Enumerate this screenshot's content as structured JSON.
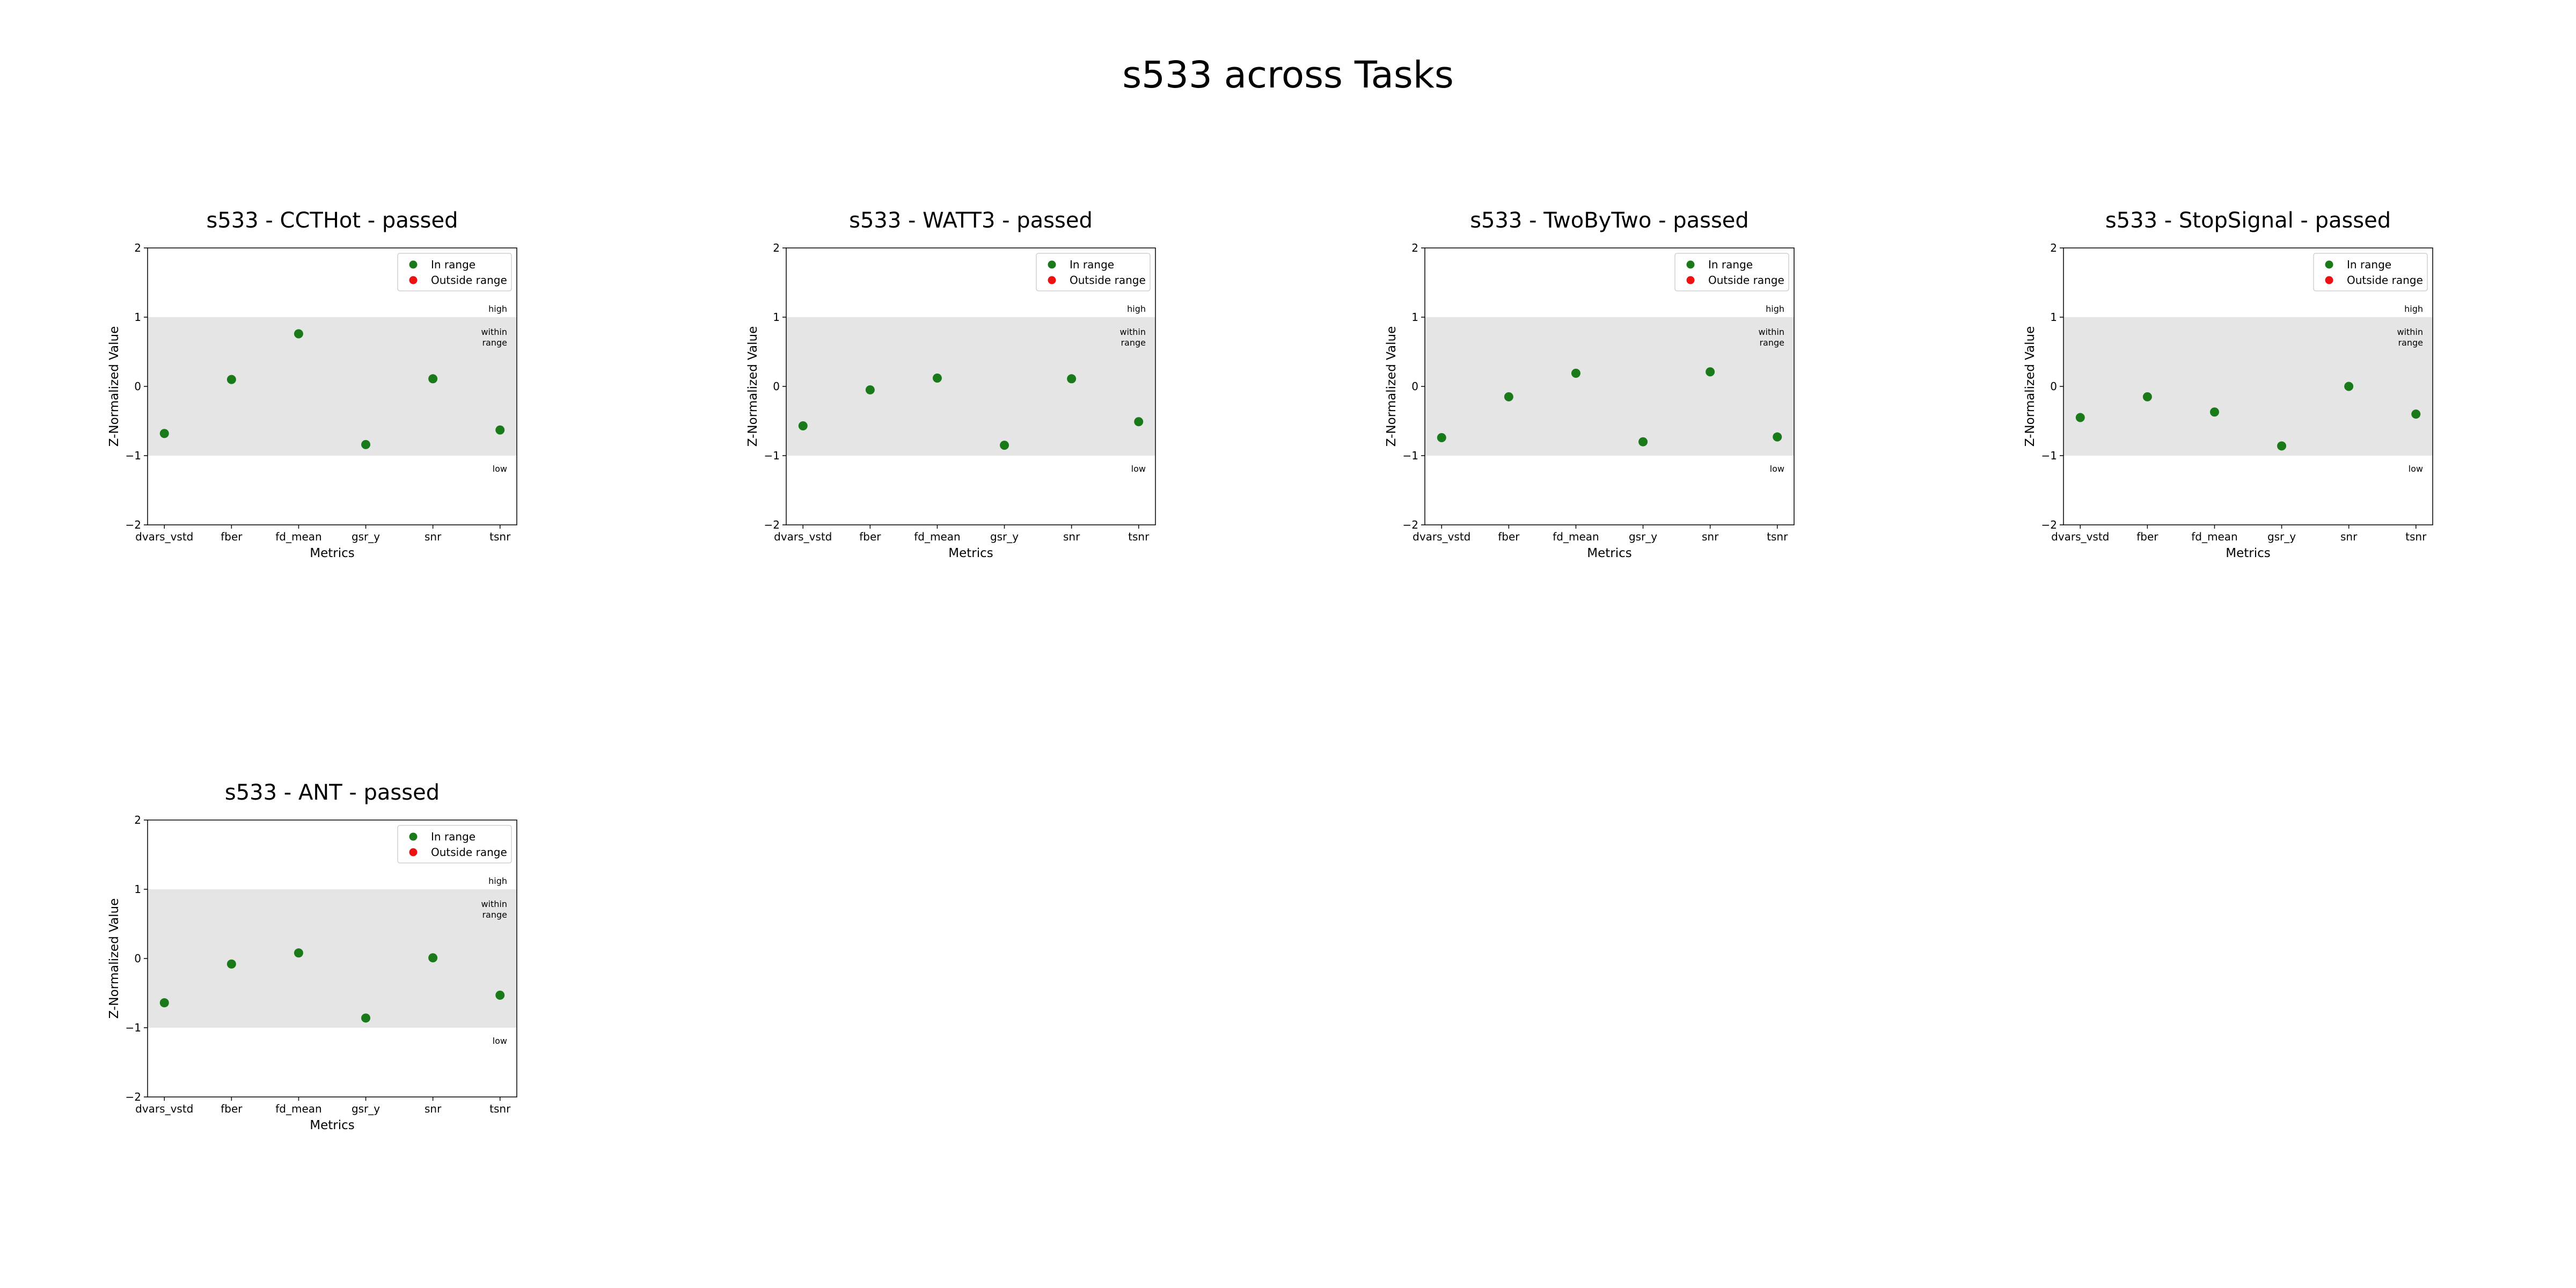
{
  "title": "s533 across Tasks",
  "colors": {
    "in_range": "#1a7a1a",
    "outside_range": "#ee1111",
    "band": "#e5e5e5"
  },
  "chart_data": [
    {
      "type": "scatter",
      "title": "s533 - CCTHot - passed",
      "xlabel": "Metrics",
      "ylabel": "Z-Normalized Value",
      "categories": [
        "dvars_vstd",
        "fber",
        "fd_mean",
        "gsr_y",
        "snr",
        "tsnr"
      ],
      "ylim": [
        -2,
        2
      ],
      "yticks": [
        "2",
        "1",
        "0",
        "−1",
        "−2"
      ],
      "band": [
        -1,
        1
      ],
      "band_labels": {
        "high": "high",
        "within_1": "within",
        "within_2": "range",
        "low": "low"
      },
      "legend": {
        "in_range": "In range",
        "outside_range": "Outside range",
        "position": "upper right"
      },
      "series": [
        {
          "name": "In range",
          "values": [
            -0.68,
            0.1,
            0.76,
            -0.84,
            0.11,
            -0.63
          ]
        }
      ]
    },
    {
      "type": "scatter",
      "title": "s533 - WATT3 - passed",
      "xlabel": "Metrics",
      "ylabel": "Z-Normalized Value",
      "categories": [
        "dvars_vstd",
        "fber",
        "fd_mean",
        "gsr_y",
        "snr",
        "tsnr"
      ],
      "ylim": [
        -2,
        2
      ],
      "yticks": [
        "2",
        "1",
        "0",
        "−1",
        "−2"
      ],
      "band": [
        -1,
        1
      ],
      "band_labels": {
        "high": "high",
        "within_1": "within",
        "within_2": "range",
        "low": "low"
      },
      "legend": {
        "in_range": "In range",
        "outside_range": "Outside range",
        "position": "upper right"
      },
      "series": [
        {
          "name": "In range",
          "values": [
            -0.57,
            -0.05,
            0.12,
            -0.85,
            0.11,
            -0.51
          ]
        }
      ]
    },
    {
      "type": "scatter",
      "title": "s533 - TwoByTwo - passed",
      "xlabel": "Metrics",
      "ylabel": "Z-Normalized Value",
      "categories": [
        "dvars_vstd",
        "fber",
        "fd_mean",
        "gsr_y",
        "snr",
        "tsnr"
      ],
      "ylim": [
        -2,
        2
      ],
      "yticks": [
        "2",
        "1",
        "0",
        "−1",
        "−2"
      ],
      "band": [
        -1,
        1
      ],
      "band_labels": {
        "high": "high",
        "within_1": "within",
        "within_2": "range",
        "low": "low"
      },
      "legend": {
        "in_range": "In range",
        "outside_range": "Outside range",
        "position": "upper right"
      },
      "series": [
        {
          "name": "In range",
          "values": [
            -0.74,
            -0.15,
            0.19,
            -0.8,
            0.21,
            -0.73
          ]
        }
      ]
    },
    {
      "type": "scatter",
      "title": "s533 - StopSignal - passed",
      "xlabel": "Metrics",
      "ylabel": "Z-Normalized Value",
      "categories": [
        "dvars_vstd",
        "fber",
        "fd_mean",
        "gsr_y",
        "snr",
        "tsnr"
      ],
      "ylim": [
        -2,
        2
      ],
      "yticks": [
        "2",
        "1",
        "0",
        "−1",
        "−2"
      ],
      "band": [
        -1,
        1
      ],
      "band_labels": {
        "high": "high",
        "within_1": "within",
        "within_2": "range",
        "low": "low"
      },
      "legend": {
        "in_range": "In range",
        "outside_range": "Outside range",
        "position": "upper right"
      },
      "series": [
        {
          "name": "In range",
          "values": [
            -0.45,
            -0.15,
            -0.37,
            -0.86,
            0.0,
            -0.4
          ]
        }
      ]
    },
    {
      "type": "scatter",
      "title": "s533 - ANT - passed",
      "xlabel": "Metrics",
      "ylabel": "Z-Normalized Value",
      "categories": [
        "dvars_vstd",
        "fber",
        "fd_mean",
        "gsr_y",
        "snr",
        "tsnr"
      ],
      "ylim": [
        -2,
        2
      ],
      "yticks": [
        "2",
        "1",
        "0",
        "−1",
        "−2"
      ],
      "band": [
        -1,
        1
      ],
      "band_labels": {
        "high": "high",
        "within_1": "within",
        "within_2": "range",
        "low": "low"
      },
      "legend": {
        "in_range": "In range",
        "outside_range": "Outside range",
        "position": "upper right"
      },
      "series": [
        {
          "name": "In range",
          "values": [
            -0.64,
            -0.08,
            0.08,
            -0.86,
            0.01,
            -0.53
          ]
        }
      ]
    }
  ]
}
